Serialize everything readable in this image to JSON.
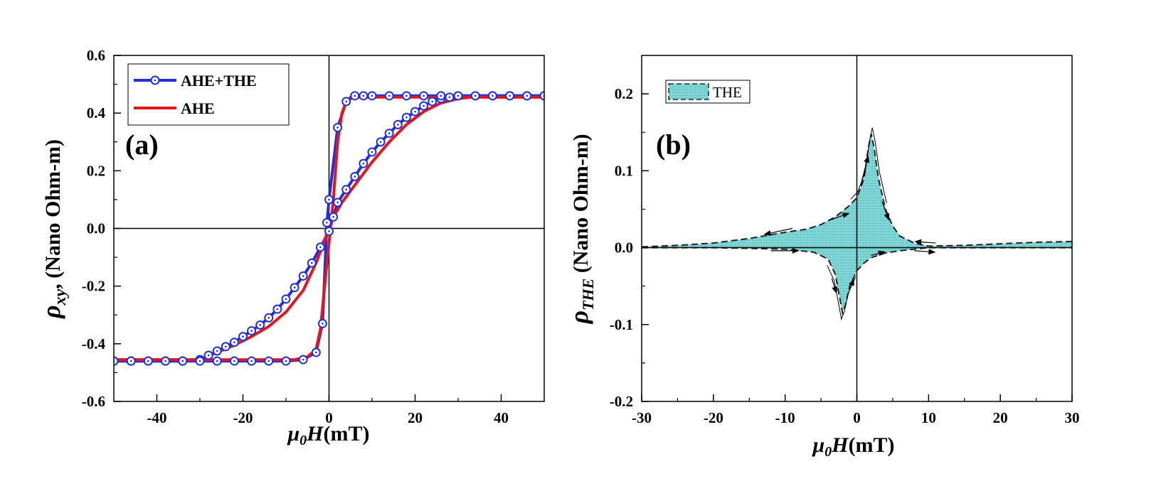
{
  "chart_data": [
    {
      "type": "line",
      "panel_label": "(a)",
      "xlabel": "μ0H(mT)",
      "ylabel": "ρxy (Nano Ohm-m)",
      "xlim": [
        -50,
        50
      ],
      "ylim": [
        -0.6,
        0.6
      ],
      "xticks": [
        -40,
        -20,
        0,
        20,
        40
      ],
      "yticks": [
        -0.6,
        -0.4,
        -0.2,
        0.0,
        0.2,
        0.4,
        0.6
      ],
      "xtick_labels": [
        "-40",
        "-20",
        "0",
        "20",
        "40"
      ],
      "ytick_labels": [
        "-0.6",
        "-0.4",
        "-0.2",
        "0.0",
        "0.2",
        "0.4",
        "0.6"
      ],
      "zero_lines": true,
      "legend": "top-left",
      "series": [
        {
          "name": "AHE+THE",
          "color": "#1f2fe0",
          "marker": "circle-dot",
          "branches": [
            [
              [
                -50,
                -0.46
              ],
              [
                -46,
                -0.46
              ],
              [
                -42,
                -0.46
              ],
              [
                -38,
                -0.46
              ],
              [
                -34,
                -0.46
              ],
              [
                -30,
                -0.455
              ],
              [
                -28,
                -0.44
              ],
              [
                -26,
                -0.425
              ],
              [
                -24,
                -0.41
              ],
              [
                -22,
                -0.395
              ],
              [
                -20,
                -0.375
              ],
              [
                -18,
                -0.355
              ],
              [
                -16,
                -0.335
              ],
              [
                -14,
                -0.31
              ],
              [
                -12,
                -0.28
              ],
              [
                -10,
                -0.245
              ],
              [
                -8,
                -0.205
              ],
              [
                -6,
                -0.165
              ],
              [
                -4,
                -0.12
              ],
              [
                -2,
                -0.065
              ],
              [
                0,
                -0.01
              ],
              [
                1,
                0.04
              ],
              [
                2,
                0.09
              ],
              [
                4,
                0.135
              ],
              [
                6,
                0.18
              ],
              [
                8,
                0.225
              ],
              [
                10,
                0.265
              ],
              [
                12,
                0.3
              ],
              [
                14,
                0.33
              ],
              [
                16,
                0.36
              ],
              [
                18,
                0.385
              ],
              [
                20,
                0.405
              ],
              [
                22,
                0.425
              ],
              [
                24,
                0.44
              ],
              [
                26,
                0.45
              ],
              [
                28,
                0.455
              ],
              [
                30,
                0.46
              ],
              [
                34,
                0.46
              ],
              [
                38,
                0.46
              ],
              [
                42,
                0.46
              ],
              [
                46,
                0.46
              ],
              [
                50,
                0.46
              ]
            ],
            [
              [
                50,
                0.46
              ],
              [
                46,
                0.46
              ],
              [
                42,
                0.46
              ],
              [
                38,
                0.46
              ],
              [
                34,
                0.46
              ],
              [
                30,
                0.46
              ],
              [
                26,
                0.46
              ],
              [
                22,
                0.46
              ],
              [
                18,
                0.46
              ],
              [
                14,
                0.46
              ],
              [
                10,
                0.46
              ],
              [
                8,
                0.46
              ],
              [
                6,
                0.46
              ],
              [
                4,
                0.44
              ],
              [
                2,
                0.35
              ],
              [
                0,
                0.1
              ],
              [
                -0.5,
                0.02
              ],
              [
                -1.5,
                -0.33
              ],
              [
                -3,
                -0.43
              ],
              [
                -6,
                -0.455
              ],
              [
                -10,
                -0.46
              ],
              [
                -14,
                -0.46
              ],
              [
                -18,
                -0.46
              ],
              [
                -22,
                -0.46
              ],
              [
                -26,
                -0.46
              ],
              [
                -30,
                -0.46
              ],
              [
                -34,
                -0.46
              ],
              [
                -38,
                -0.46
              ],
              [
                -42,
                -0.46
              ],
              [
                -46,
                -0.46
              ],
              [
                -50,
                -0.46
              ]
            ]
          ]
        },
        {
          "name": "AHE",
          "color": "#e8141c",
          "marker": "none",
          "branches": [
            [
              [
                -50,
                -0.455
              ],
              [
                -30,
                -0.455
              ],
              [
                -26,
                -0.43
              ],
              [
                -22,
                -0.405
              ],
              [
                -18,
                -0.375
              ],
              [
                -14,
                -0.34
              ],
              [
                -10,
                -0.29
              ],
              [
                -6,
                -0.215
              ],
              [
                -3,
                -0.12
              ],
              [
                -1,
                -0.04
              ],
              [
                1,
                0.04
              ],
              [
                3,
                0.09
              ],
              [
                6,
                0.15
              ],
              [
                10,
                0.23
              ],
              [
                14,
                0.3
              ],
              [
                18,
                0.36
              ],
              [
                22,
                0.405
              ],
              [
                26,
                0.435
              ],
              [
                30,
                0.45
              ],
              [
                33,
                0.455
              ],
              [
                50,
                0.455
              ]
            ],
            [
              [
                50,
                0.455
              ],
              [
                30,
                0.455
              ],
              [
                10,
                0.455
              ],
              [
                5,
                0.455
              ],
              [
                4,
                0.44
              ],
              [
                3,
                0.4
              ],
              [
                2,
                0.3
              ],
              [
                1,
                0.1
              ],
              [
                0,
                -0.05
              ],
              [
                -1,
                -0.2
              ],
              [
                -2,
                -0.35
              ],
              [
                -3,
                -0.42
              ],
              [
                -5,
                -0.445
              ],
              [
                -8,
                -0.455
              ],
              [
                -50,
                -0.455
              ]
            ]
          ]
        }
      ]
    },
    {
      "type": "area",
      "panel_label": "(b)",
      "xlabel": "μ0H(mT)",
      "ylabel": "ρTHE (Nano Ohm-m)",
      "xlim": [
        -30,
        30
      ],
      "ylim": [
        -0.2,
        0.25
      ],
      "xticks": [
        -30,
        -20,
        -10,
        0,
        10,
        20,
        30
      ],
      "yticks": [
        -0.2,
        -0.1,
        0.0,
        0.1,
        0.2
      ],
      "xtick_labels": [
        "-30",
        "-20",
        "-10",
        "0",
        "10",
        "20",
        "30"
      ],
      "ytick_labels": [
        "-0.2",
        "-0.1",
        "0.0",
        "0.1",
        "0.2"
      ],
      "zero_lines": true,
      "legend": "top-left",
      "series": [
        {
          "name": "THE",
          "color": "#7fd6d6",
          "upper": [
            [
              -30,
              0.001
            ],
            [
              -25,
              0.003
            ],
            [
              -20,
              0.006
            ],
            [
              -15,
              0.012
            ],
            [
              -10,
              0.02
            ],
            [
              -7,
              0.024
            ],
            [
              -5,
              0.03
            ],
            [
              -3,
              0.04
            ],
            [
              -1,
              0.055
            ],
            [
              0,
              0.065
            ],
            [
              1,
              0.09
            ],
            [
              1.6,
              0.13
            ],
            [
              2,
              0.148
            ],
            [
              2.4,
              0.13
            ],
            [
              3,
              0.09
            ],
            [
              4,
              0.05
            ],
            [
              5,
              0.028
            ],
            [
              6,
              0.015
            ],
            [
              8,
              0.006
            ],
            [
              10,
              0.002
            ],
            [
              15,
              0.003
            ],
            [
              20,
              0.005
            ],
            [
              25,
              0.007
            ],
            [
              30,
              0.008
            ]
          ],
          "lower": [
            [
              -30,
              0.0
            ],
            [
              -20,
              0.0
            ],
            [
              -15,
              -0.001
            ],
            [
              -10,
              -0.002
            ],
            [
              -6,
              -0.006
            ],
            [
              -4,
              -0.015
            ],
            [
              -3,
              -0.035
            ],
            [
              -2.5,
              -0.06
            ],
            [
              -2,
              -0.085
            ],
            [
              -1.6,
              -0.075
            ],
            [
              -1,
              -0.05
            ],
            [
              0,
              -0.03
            ],
            [
              1,
              -0.02
            ],
            [
              2,
              -0.013
            ],
            [
              4,
              -0.007
            ],
            [
              6,
              -0.004
            ],
            [
              8,
              -0.002
            ],
            [
              10,
              0.0
            ],
            [
              30,
              0.0
            ]
          ],
          "arrows": [
            {
              "from": [
                -9,
                0.025
              ],
              "to": [
                -13,
                0.017
              ]
            },
            {
              "from": [
                -4,
                0.035
              ],
              "to": [
                -1,
                0.045
              ]
            },
            {
              "from": [
                0.5,
                0.08
              ],
              "to": [
                1.6,
                0.12
              ]
            },
            {
              "from": [
                3.5,
                0.06
              ],
              "to": [
                4.5,
                0.035
              ]
            },
            {
              "from": [
                11,
                0.006
              ],
              "to": [
                8,
                0.008
              ]
            },
            {
              "from": [
                -12,
                -0.004
              ],
              "to": [
                -8,
                -0.004
              ]
            },
            {
              "from": [
                -3.5,
                -0.04
              ],
              "to": [
                -2.8,
                -0.06
              ]
            },
            {
              "from": [
                -1.2,
                -0.06
              ],
              "to": [
                -0.4,
                -0.04
              ]
            },
            {
              "from": [
                2,
                -0.01
              ],
              "to": [
                4,
                -0.005
              ]
            },
            {
              "from": [
                8,
                -0.004
              ],
              "to": [
                11,
                -0.006
              ]
            }
          ]
        }
      ]
    }
  ]
}
